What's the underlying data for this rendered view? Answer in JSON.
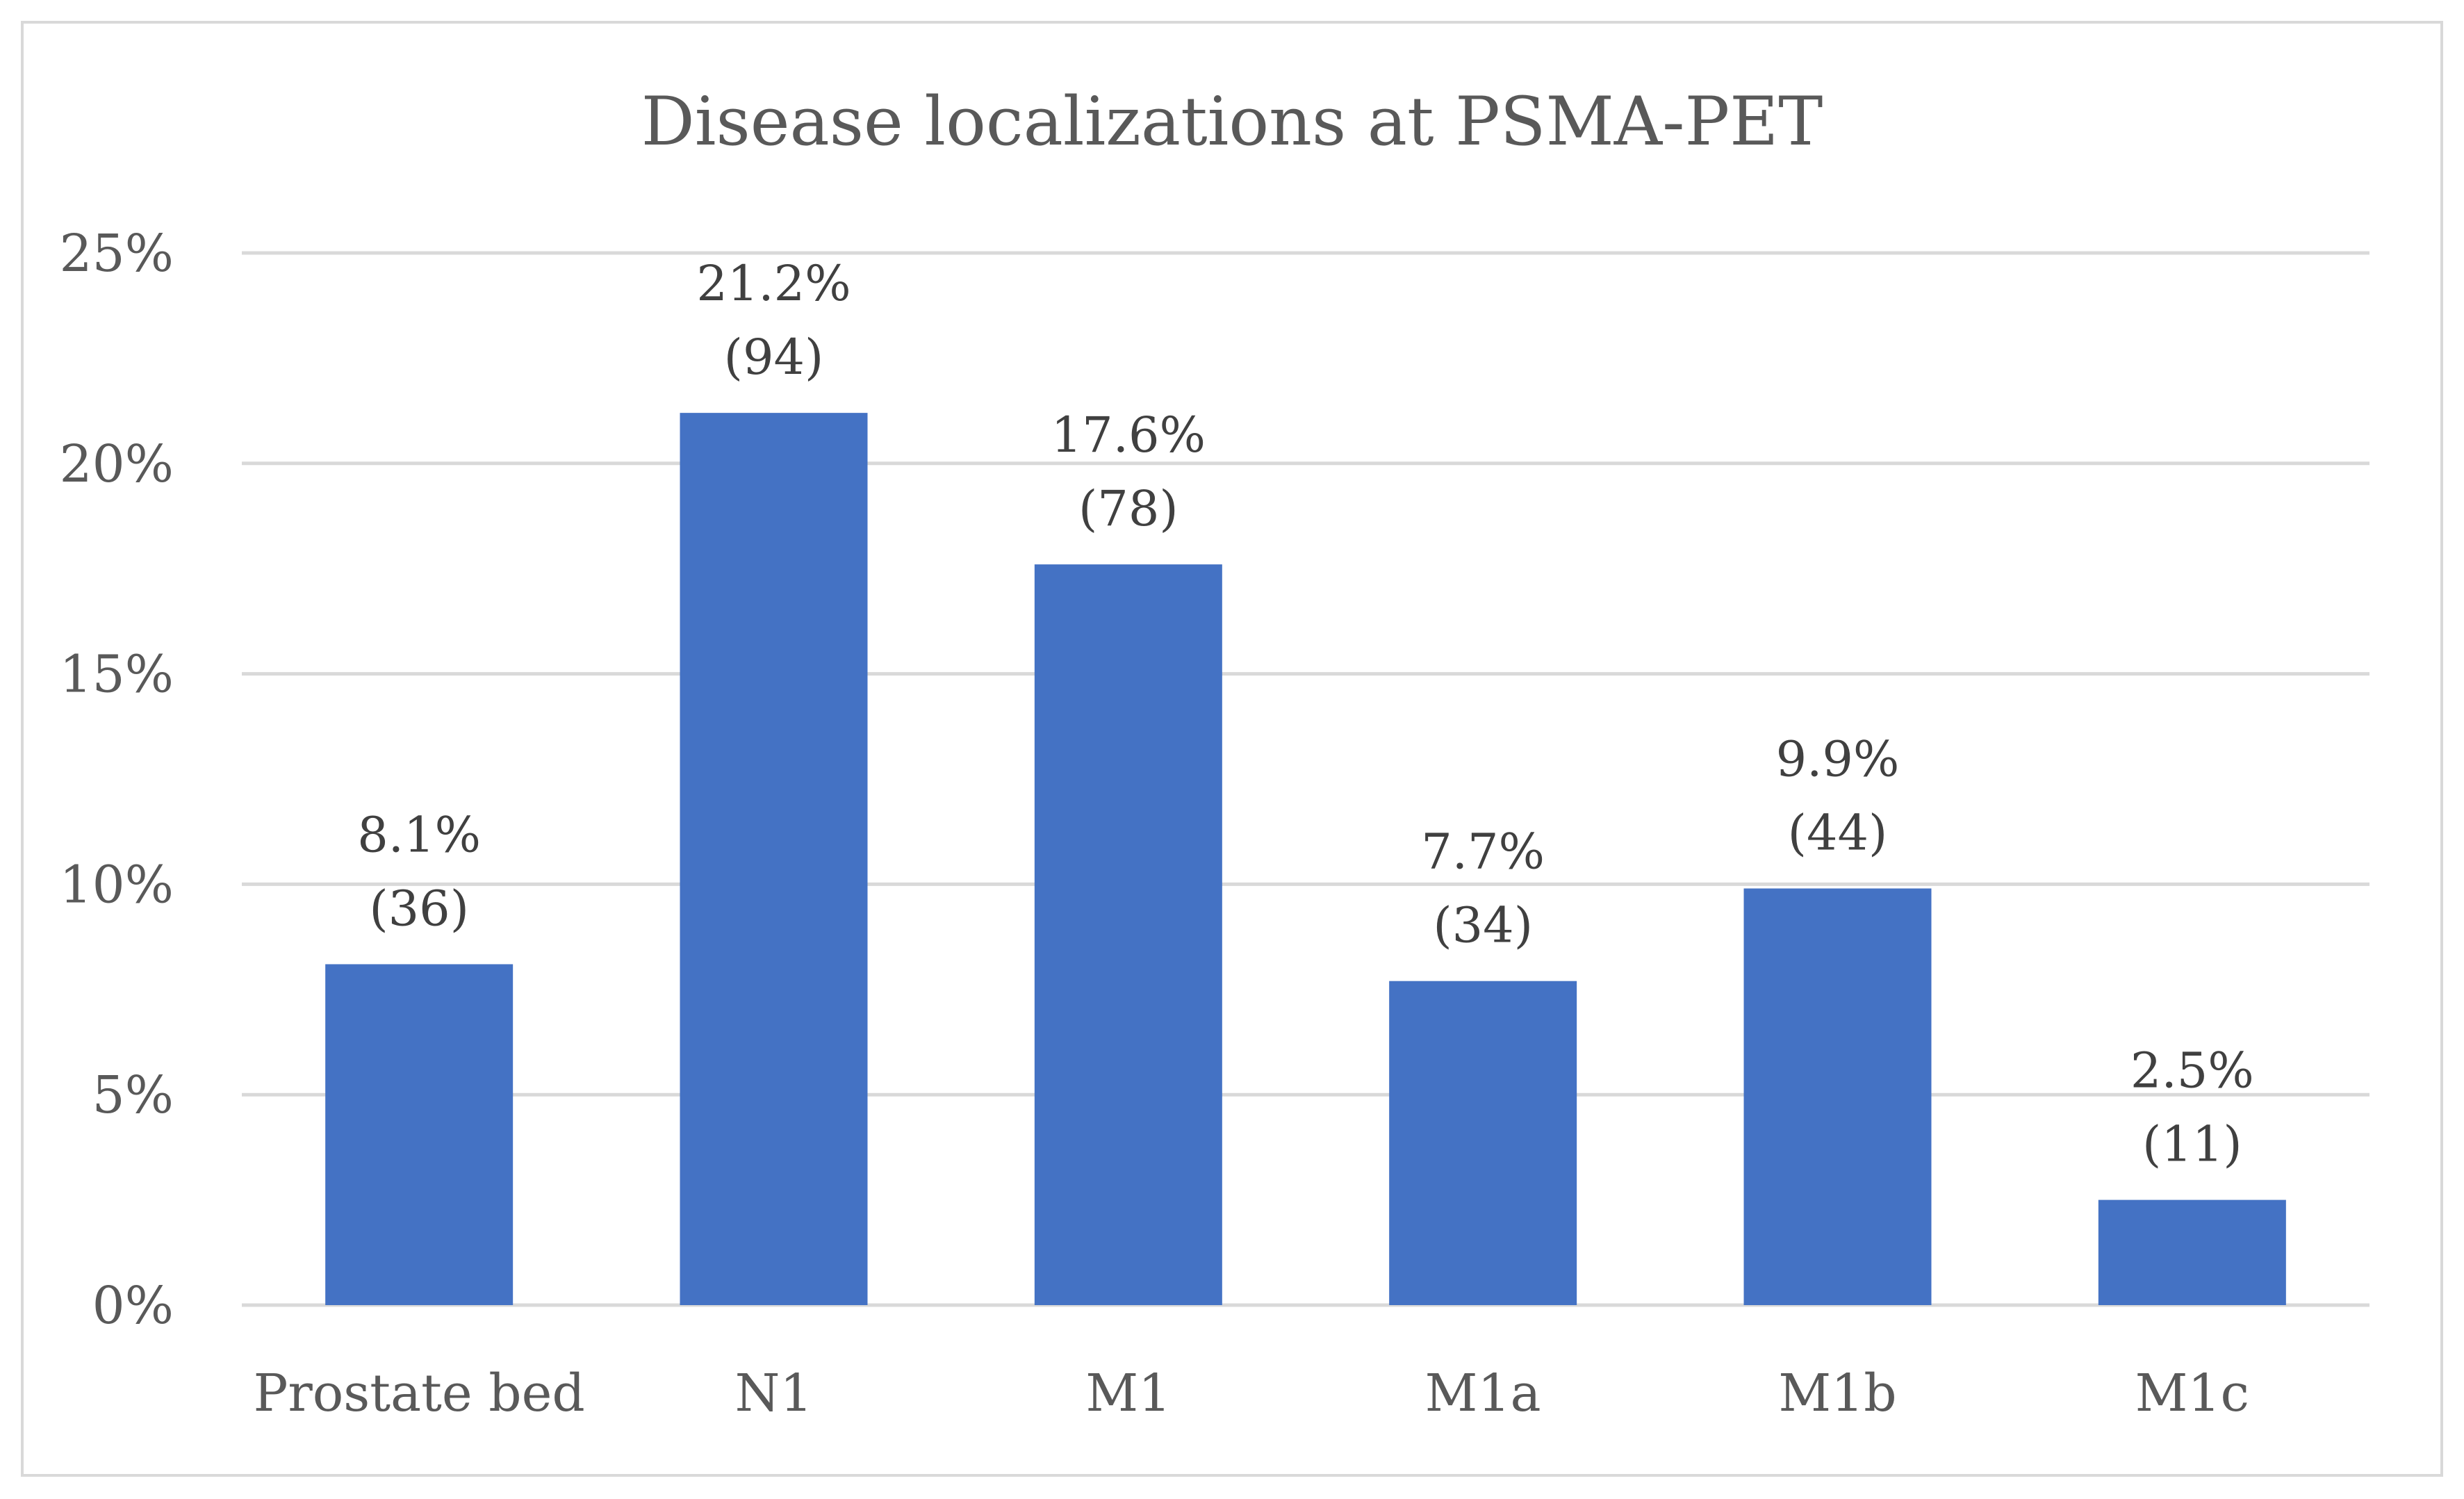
{
  "chart_data": {
    "type": "bar",
    "title": "Disease localizations at PSMA-PET",
    "categories": [
      "Prostate bed",
      "N1",
      "M1",
      "M1a",
      "M1b",
      "M1c"
    ],
    "values": [
      8.1,
      21.2,
      17.6,
      7.7,
      9.9,
      2.5
    ],
    "percent_labels": [
      "8.1%",
      "21.2%",
      "17.6%",
      "7.7%",
      "9.9%",
      "2.5%"
    ],
    "count_labels": [
      "(36)",
      "(94)",
      "(78)",
      "(34)",
      "(44)",
      "(11)"
    ],
    "y_ticks": [
      0,
      5,
      10,
      15,
      20,
      25
    ],
    "y_tick_labels": [
      "0%",
      "5%",
      "10%",
      "15%",
      "20%",
      "25%"
    ],
    "ylim": [
      0,
      25
    ],
    "xlabel": "",
    "ylabel": "",
    "grid": true,
    "legend": "none",
    "colors": {
      "bar": "#4472c4",
      "grid": "#d9d9d9",
      "text": "#595959",
      "label": "#404040"
    }
  }
}
